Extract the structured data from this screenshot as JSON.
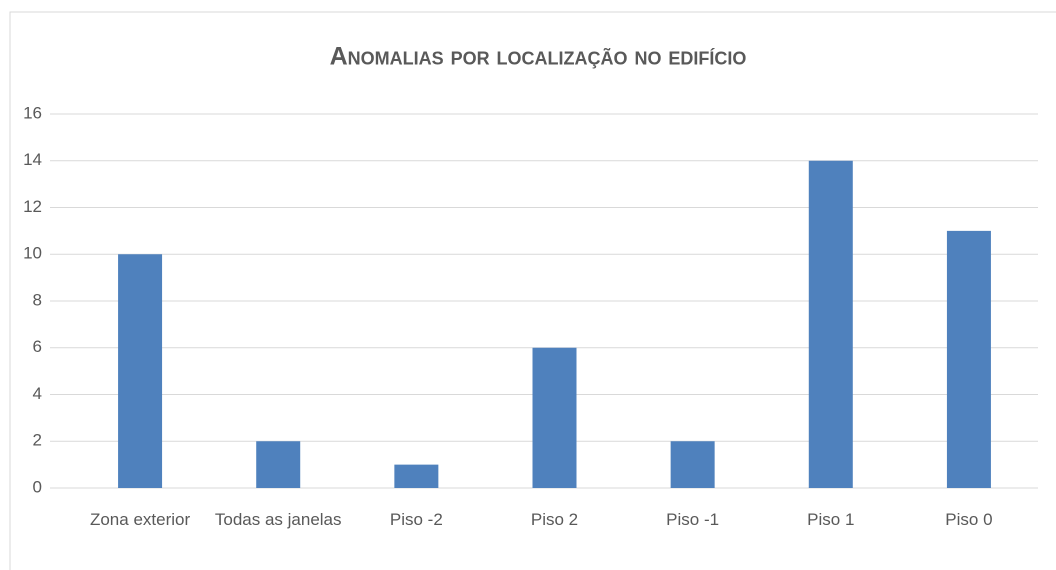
{
  "chart_data": {
    "type": "bar",
    "title": "Anomalias por localização no edifício",
    "categories": [
      "Zona exterior",
      "Todas as janelas",
      "Piso -2",
      "Piso 2",
      "Piso -1",
      "Piso 1",
      "Piso 0"
    ],
    "values": [
      10,
      2,
      1,
      6,
      2,
      14,
      11
    ],
    "color": "#4f81bd",
    "ylim": [
      0,
      16
    ],
    "yticks": [
      0,
      2,
      4,
      6,
      8,
      10,
      12,
      14,
      16
    ],
    "grid": true
  }
}
